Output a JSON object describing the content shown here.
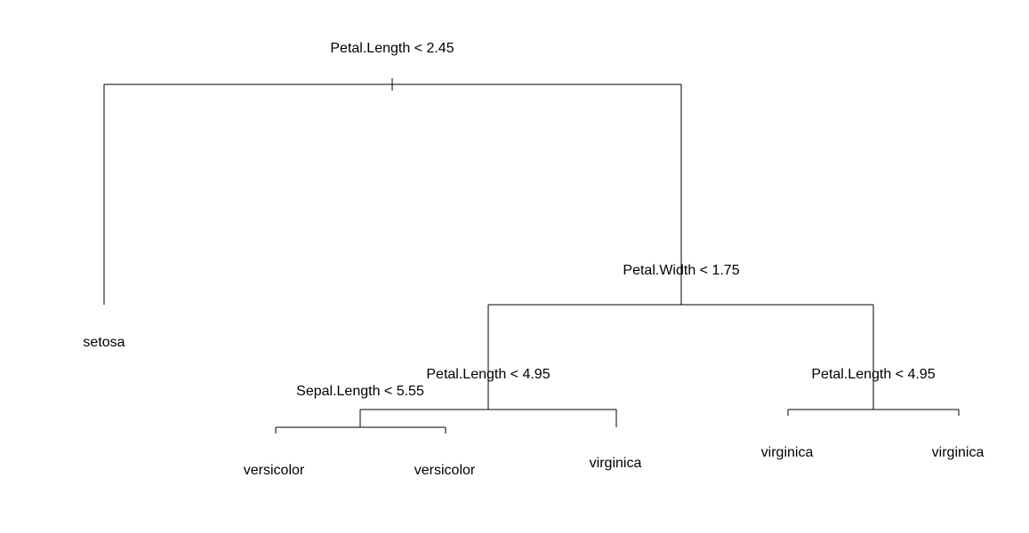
{
  "tree": {
    "root_split": "Petal.Length < 2.45",
    "split_petal_width": "Petal.Width < 1.75",
    "split_left_petal_length": "Petal.Length < 4.95",
    "split_sepal_length": "Sepal.Length < 5.55",
    "split_right_petal_length": "Petal.Length < 4.95",
    "leaves": {
      "setosa": "setosa",
      "versicolor_1": "versicolor",
      "versicolor_2": "versicolor",
      "virginica_1": "virginica",
      "virginica_2": "virginica",
      "virginica_3": "virginica"
    },
    "colors": {
      "line": "#000000",
      "text": "#000000",
      "background": "#ffffff"
    }
  }
}
